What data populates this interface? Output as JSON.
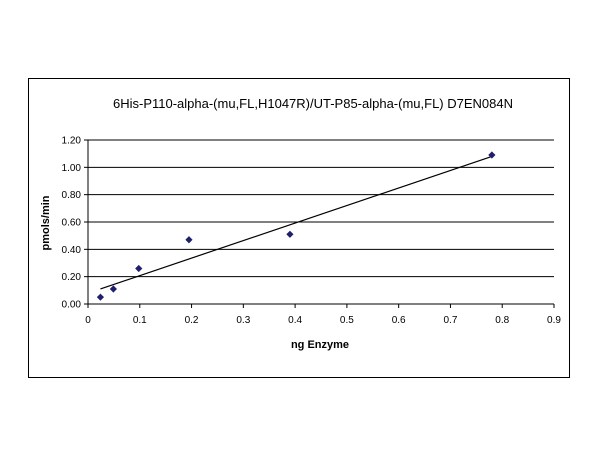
{
  "chart_data": {
    "type": "scatter",
    "title": "6His-P110-alpha-(mu,FL,H1047R)/UT-P85-alpha-(mu,FL) D7EN084N",
    "xlabel": "ng Enzyme",
    "ylabel": "pmols/min",
    "xlim": [
      0,
      0.9
    ],
    "ylim": [
      0,
      1.2
    ],
    "x_ticks": [
      "0",
      "0.1",
      "0.2",
      "0.3",
      "0.4",
      "0.5",
      "0.6",
      "0.7",
      "0.8",
      "0.9"
    ],
    "x_tick_values": [
      0,
      0.1,
      0.2,
      0.3,
      0.4,
      0.5,
      0.6,
      0.7,
      0.8,
      0.9
    ],
    "y_ticks": [
      "0.00",
      "0.20",
      "0.40",
      "0.60",
      "0.80",
      "1.00",
      "1.20"
    ],
    "y_tick_values": [
      0,
      0.2,
      0.4,
      0.6,
      0.8,
      1.0,
      1.2
    ],
    "grid": "horizontal",
    "legend": "none",
    "marker_color": "#1f1f6e",
    "trendline_color": "#000000",
    "series": [
      {
        "x": [
          0.024,
          0.049,
          0.098,
          0.195,
          0.39,
          0.78
        ],
        "y": [
          0.05,
          0.11,
          0.26,
          0.47,
          0.51,
          1.09
        ]
      }
    ],
    "trendline": {
      "type": "linear",
      "x": [
        0.024,
        0.78
      ],
      "y": [
        0.11,
        1.08
      ]
    }
  }
}
